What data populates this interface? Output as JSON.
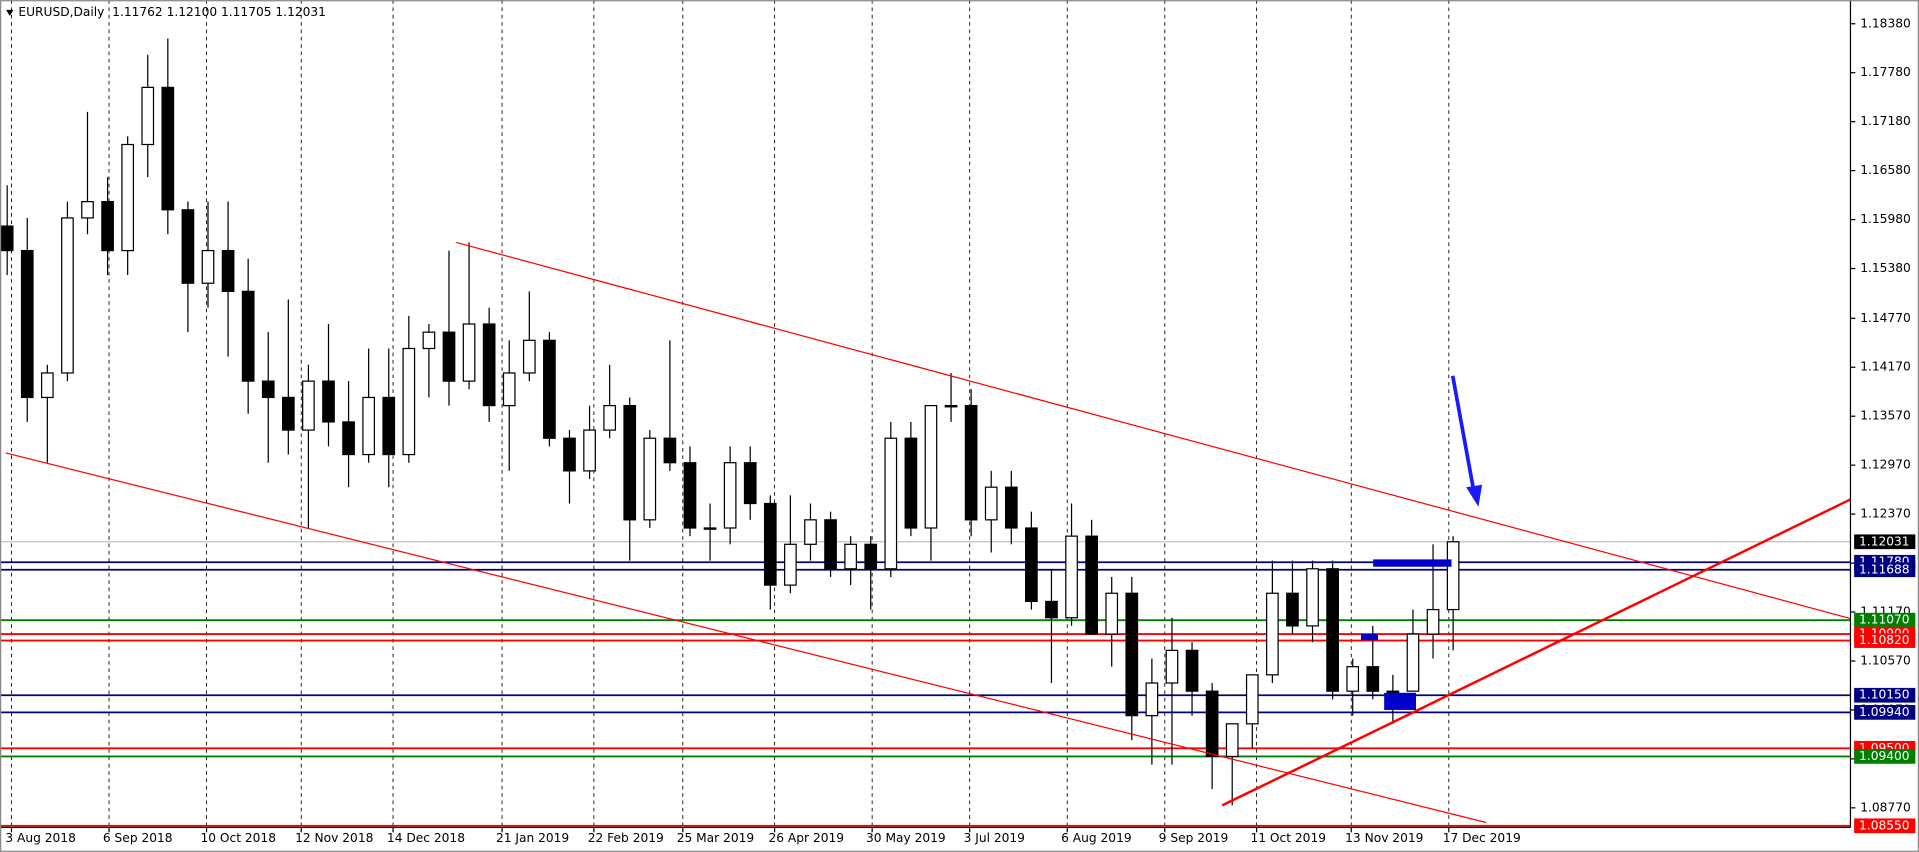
{
  "chart_data": {
    "type": "candlestick",
    "title": "EURUSD,Daily  1.11762 1.12100 1.11705 1.12031",
    "xlim": [
      "2018-07-30",
      "2020-05-05"
    ],
    "ylim": [
      1.0853,
      1.1867
    ],
    "xticks": [
      {
        "value": "2018-08-03",
        "label": "3 Aug 2018"
      },
      {
        "value": "2018-09-06",
        "label": "6 Sep 2018"
      },
      {
        "value": "2018-10-10",
        "label": "10 Oct 2018"
      },
      {
        "value": "2018-11-12",
        "label": "12 Nov 2018"
      },
      {
        "value": "2018-12-14",
        "label": "14 Dec 2018"
      },
      {
        "value": "2019-01-21",
        "label": "21 Jan 2019"
      },
      {
        "value": "2019-02-22",
        "label": "22 Feb 2019"
      },
      {
        "value": "2019-03-25",
        "label": "25 Mar 2019"
      },
      {
        "value": "2019-04-26",
        "label": "26 Apr 2019"
      },
      {
        "value": "2019-05-30",
        "label": "30 May 2019"
      },
      {
        "value": "2019-07-03",
        "label": "3 Jul 2019"
      },
      {
        "value": "2019-08-06",
        "label": "6 Aug 2019"
      },
      {
        "value": "2019-09-09",
        "label": "9 Sep 2019"
      },
      {
        "value": "2019-10-11",
        "label": "11 Oct 2019"
      },
      {
        "value": "2019-11-13",
        "label": "13 Nov 2019"
      },
      {
        "value": "2019-12-17",
        "label": "17 Dec 2019"
      }
    ],
    "yticks": [
      {
        "value": 1.1838,
        "label": "1.18380"
      },
      {
        "value": 1.1778,
        "label": "1.17780"
      },
      {
        "value": 1.1718,
        "label": "1.17180"
      },
      {
        "value": 1.1658,
        "label": "1.16580"
      },
      {
        "value": 1.1598,
        "label": "1.15980"
      },
      {
        "value": 1.1538,
        "label": "1.15380"
      },
      {
        "value": 1.1477,
        "label": "1.14770"
      },
      {
        "value": 1.1417,
        "label": "1.14170"
      },
      {
        "value": 1.1357,
        "label": "1.13570"
      },
      {
        "value": 1.1297,
        "label": "1.12970"
      },
      {
        "value": 1.1237,
        "label": "1.12370"
      },
      {
        "value": 1.1177,
        "label": "1.11770"
      },
      {
        "value": 1.1117,
        "label": "1.11170"
      },
      {
        "value": 1.1057,
        "label": "1.10570"
      },
      {
        "value": 1.0997,
        "label": "1.09970"
      },
      {
        "value": 1.0937,
        "label": "1.09370"
      },
      {
        "value": 1.0877,
        "label": "1.08770"
      }
    ],
    "grid": true,
    "up_color": "#ffffff",
    "down_color": "#000000",
    "x": [
      "2018-07-30",
      "2018-08-06",
      "2018-08-13",
      "2018-08-20",
      "2018-08-27",
      "2018-09-03",
      "2018-09-10",
      "2018-09-17",
      "2018-09-24",
      "2018-10-01",
      "2018-10-08",
      "2018-10-15",
      "2018-10-22",
      "2018-10-29",
      "2018-11-05",
      "2018-11-12",
      "2018-11-19",
      "2018-11-26",
      "2018-12-03",
      "2018-12-10",
      "2018-12-17",
      "2018-12-24",
      "2018-12-31",
      "2019-01-07",
      "2019-01-14",
      "2019-01-21",
      "2019-01-28",
      "2019-02-04",
      "2019-02-11",
      "2019-02-18",
      "2019-02-25",
      "2019-03-04",
      "2019-03-11",
      "2019-03-18",
      "2019-03-25",
      "2019-04-01",
      "2019-04-08",
      "2019-04-15",
      "2019-04-22",
      "2019-04-29",
      "2019-05-06",
      "2019-05-13",
      "2019-05-20",
      "2019-05-27",
      "2019-06-03",
      "2019-06-10",
      "2019-06-17",
      "2019-06-24",
      "2019-07-01",
      "2019-07-08",
      "2019-07-15",
      "2019-07-22",
      "2019-07-29",
      "2019-08-05",
      "2019-08-12",
      "2019-08-19",
      "2019-08-26",
      "2019-09-02",
      "2019-09-09",
      "2019-09-16",
      "2019-09-23",
      "2019-09-30",
      "2019-10-07",
      "2019-10-14",
      "2019-10-21",
      "2019-10-28",
      "2019-11-04",
      "2019-11-11",
      "2019-11-18",
      "2019-11-25",
      "2019-12-02",
      "2019-12-09",
      "2019-12-16"
    ],
    "open": [
      1.159,
      1.156,
      1.138,
      1.141,
      1.16,
      1.162,
      1.156,
      1.169,
      1.176,
      1.161,
      1.152,
      1.156,
      1.151,
      1.14,
      1.138,
      1.134,
      1.14,
      1.135,
      1.131,
      1.138,
      1.131,
      1.144,
      1.146,
      1.14,
      1.147,
      1.137,
      1.141,
      1.145,
      1.133,
      1.129,
      1.134,
      1.137,
      1.123,
      1.133,
      1.13,
      1.122,
      1.122,
      1.13,
      1.125,
      1.115,
      1.12,
      1.123,
      1.117,
      1.12,
      1.117,
      1.133,
      1.122,
      1.137,
      1.137,
      1.123,
      1.127,
      1.122,
      1.113,
      1.111,
      1.121,
      1.109,
      1.114,
      1.099,
      1.103,
      1.107,
      1.102,
      1.094,
      1.098,
      1.104,
      1.114,
      1.11,
      1.117,
      1.102,
      1.105,
      1.102,
      1.102,
      1.109,
      1.112
    ],
    "high": [
      1.164,
      1.16,
      1.142,
      1.162,
      1.173,
      1.165,
      1.17,
      1.18,
      1.182,
      1.162,
      1.162,
      1.162,
      1.155,
      1.146,
      1.15,
      1.142,
      1.147,
      1.14,
      1.144,
      1.144,
      1.148,
      1.147,
      1.156,
      1.157,
      1.149,
      1.145,
      1.151,
      1.146,
      1.134,
      1.137,
      1.142,
      1.138,
      1.134,
      1.145,
      1.132,
      1.125,
      1.132,
      1.132,
      1.126,
      1.126,
      1.125,
      1.124,
      1.121,
      1.121,
      1.135,
      1.135,
      1.137,
      1.141,
      1.139,
      1.129,
      1.129,
      1.124,
      1.117,
      1.125,
      1.123,
      1.116,
      1.116,
      1.106,
      1.111,
      1.108,
      1.103,
      1.098,
      1.104,
      1.118,
      1.118,
      1.118,
      1.118,
      1.106,
      1.11,
      1.104,
      1.112,
      1.12,
      1.121
    ],
    "low": [
      1.153,
      1.135,
      1.13,
      1.14,
      1.158,
      1.153,
      1.153,
      1.165,
      1.158,
      1.146,
      1.149,
      1.143,
      1.136,
      1.13,
      1.131,
      1.122,
      1.132,
      1.127,
      1.13,
      1.127,
      1.13,
      1.138,
      1.137,
      1.139,
      1.135,
      1.129,
      1.14,
      1.132,
      1.125,
      1.128,
      1.133,
      1.118,
      1.122,
      1.129,
      1.121,
      1.118,
      1.12,
      1.123,
      1.112,
      1.114,
      1.118,
      1.116,
      1.115,
      1.112,
      1.116,
      1.121,
      1.118,
      1.135,
      1.121,
      1.119,
      1.12,
      1.112,
      1.103,
      1.11,
      1.109,
      1.105,
      1.096,
      1.093,
      1.093,
      1.099,
      1.09,
      1.088,
      1.095,
      1.103,
      1.109,
      1.108,
      1.101,
      1.099,
      1.101,
      1.098,
      1.102,
      1.106,
      1.107
    ],
    "close": [
      1.156,
      1.138,
      1.141,
      1.16,
      1.162,
      1.156,
      1.169,
      1.176,
      1.161,
      1.152,
      1.156,
      1.151,
      1.14,
      1.138,
      1.134,
      1.14,
      1.135,
      1.131,
      1.138,
      1.131,
      1.144,
      1.146,
      1.14,
      1.147,
      1.137,
      1.141,
      1.145,
      1.133,
      1.129,
      1.134,
      1.137,
      1.123,
      1.133,
      1.13,
      1.122,
      1.122,
      1.13,
      1.125,
      1.115,
      1.12,
      1.123,
      1.117,
      1.12,
      1.117,
      1.133,
      1.122,
      1.137,
      1.137,
      1.123,
      1.127,
      1.122,
      1.113,
      1.111,
      1.121,
      1.109,
      1.114,
      1.099,
      1.103,
      1.107,
      1.102,
      1.094,
      1.098,
      1.104,
      1.114,
      1.11,
      1.117,
      1.102,
      1.105,
      1.102,
      1.102,
      1.109,
      1.112,
      1.12031
    ],
    "current_price": 1.12031,
    "levels": [
      {
        "value": 1.1178,
        "label": "1.11780",
        "color": "#000080"
      },
      {
        "value": 1.11688,
        "label": "1.11688",
        "color": "#000080"
      },
      {
        "value": 1.1107,
        "label": "1.11070",
        "color": "#008000"
      },
      {
        "value": 1.109,
        "label": "1.10900",
        "color": "#ff0000"
      },
      {
        "value": 1.1082,
        "label": "1.10820",
        "color": "#ff0000"
      },
      {
        "value": 1.1015,
        "label": "1.10150",
        "color": "#000080"
      },
      {
        "value": 1.0994,
        "label": "1.09940",
        "color": "#000080"
      },
      {
        "value": 1.095,
        "label": "1.09500",
        "color": "#ff0000"
      },
      {
        "value": 1.094,
        "label": "1.09400",
        "color": "#008000"
      },
      {
        "value": 1.0855,
        "label": "1.08550",
        "color": "#ff0000"
      }
    ],
    "trendlines": [
      {
        "x": [
          "2019-01-05",
          "2020-05-05"
        ],
        "y": [
          1.157,
          1.1109
        ],
        "color": "#ff0000",
        "width": 1
      },
      {
        "x": [
          "2018-08-01",
          "2019-12-30"
        ],
        "y": [
          1.1312,
          1.0859
        ],
        "color": "#ff0000",
        "width": 1
      },
      {
        "x": [
          "2019-09-29",
          "2020-05-05"
        ],
        "y": [
          1.088,
          1.1255
        ],
        "color": "#ff0000",
        "width": 2
      }
    ]
  }
}
